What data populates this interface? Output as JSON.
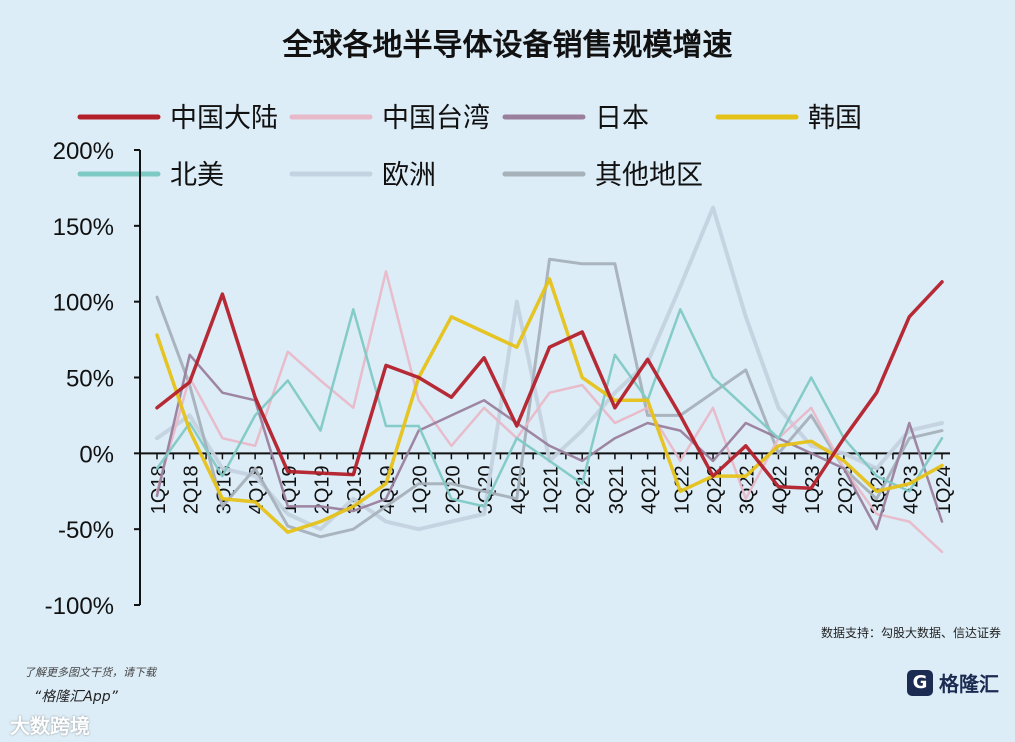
{
  "page": {
    "title": "全球各地半导体设备销售规模增速",
    "source": "数据支持：勾股大数据、信达证券",
    "footer_text": "了解更多图文干货，请下载",
    "footer_app": "“格隆汇App”",
    "brand": "格隆汇",
    "brand_logo": "G",
    "watermark": "大数跨境"
  },
  "chart_data": {
    "type": "line",
    "title": "全球各地半导体设备销售规模增速",
    "ylim": [
      -100,
      200
    ],
    "yticks": [
      -100,
      -50,
      0,
      50,
      100,
      150,
      200
    ],
    "ytick_labels": [
      "-100%",
      "-50%",
      "0%",
      "50%",
      "100%",
      "150%",
      "200%"
    ],
    "grid": false,
    "legend_position": "top",
    "categories": [
      "1Q18",
      "2Q18",
      "3Q18",
      "4Q18",
      "1Q19",
      "2Q19",
      "3Q19",
      "4Q19",
      "1Q20",
      "2Q20",
      "3Q20",
      "4Q20",
      "1Q21",
      "2Q21",
      "3Q21",
      "4Q21",
      "1Q22",
      "2Q22",
      "3Q22",
      "4Q22",
      "1Q23",
      "2Q23",
      "3Q23",
      "4Q23",
      "1Q24"
    ],
    "category_labels": [
      "1Q18",
      "",
      "2Q18",
      "",
      "3Q18",
      "",
      "4Q18",
      "",
      "1Q19",
      "",
      "2Q19",
      "",
      "3Q19",
      "",
      "4Q19",
      "",
      "1Q20",
      "",
      "2Q20",
      "",
      "3Q20",
      "",
      "4Q20",
      "",
      "1Q21",
      "",
      "2Q21",
      "",
      "3Q21",
      "",
      "4Q21",
      "",
      "1Q22",
      "",
      "2Q22",
      "",
      "3Q22",
      "",
      "4Q22",
      "",
      "1Q23",
      "",
      "2Q23",
      "",
      "3Q23",
      "",
      "4Q23",
      "",
      "1Q24"
    ],
    "series": [
      {
        "name": "中国大陆",
        "color": "#b3202a",
        "width": 3.5,
        "values": [
          30,
          47,
          105,
          37,
          -12,
          -13,
          -14,
          58,
          50,
          37,
          63,
          18,
          70,
          80,
          30,
          62,
          25,
          -15,
          5,
          -22,
          -23,
          10,
          40,
          90,
          113
        ]
      },
      {
        "name": "中国台湾",
        "color": "#e8b9c8",
        "width": 2.5,
        "values": [
          -25,
          50,
          10,
          5,
          67,
          48,
          30,
          120,
          35,
          5,
          30,
          10,
          40,
          45,
          20,
          30,
          -5,
          30,
          -30,
          10,
          30,
          -10,
          -40,
          -45,
          -65
        ]
      },
      {
        "name": "日本",
        "color": "#9a7f9d",
        "width": 2.5,
        "values": [
          -28,
          65,
          40,
          35,
          -35,
          -35,
          -38,
          -30,
          15,
          25,
          35,
          20,
          5,
          -5,
          10,
          20,
          15,
          -5,
          20,
          10,
          0,
          -10,
          -50,
          20,
          -45
        ]
      },
      {
        "name": "韩国",
        "color": "#e5c218",
        "width": 3.5,
        "values": [
          78,
          15,
          -30,
          -32,
          -52,
          -45,
          -35,
          -20,
          50,
          90,
          80,
          70,
          115,
          50,
          35,
          35,
          -25,
          -15,
          -15,
          5,
          8,
          -5,
          -25,
          -20,
          -8
        ]
      },
      {
        "name": "北美",
        "color": "#7fc9c4",
        "width": 2.5,
        "values": [
          -10,
          20,
          -15,
          25,
          48,
          15,
          95,
          18,
          18,
          -30,
          -35,
          10,
          -5,
          -20,
          65,
          35,
          95,
          50,
          30,
          10,
          50,
          10,
          -15,
          -25,
          10
        ]
      },
      {
        "name": "欧洲",
        "color": "#c4d3e0",
        "width": 4,
        "values": [
          10,
          25,
          -10,
          -15,
          -40,
          -50,
          -30,
          -45,
          -50,
          -45,
          -40,
          100,
          -5,
          15,
          40,
          60,
          110,
          162,
          90,
          30,
          5,
          0,
          -10,
          15,
          20
        ]
      },
      {
        "name": "其他地区",
        "color": "#a7b1ba",
        "width": 3,
        "values": [
          103,
          45,
          -35,
          -10,
          -48,
          -55,
          -50,
          -35,
          -20,
          -20,
          -25,
          -30,
          128,
          125,
          125,
          25,
          25,
          40,
          55,
          0,
          25,
          -10,
          -30,
          10,
          15
        ]
      }
    ]
  }
}
